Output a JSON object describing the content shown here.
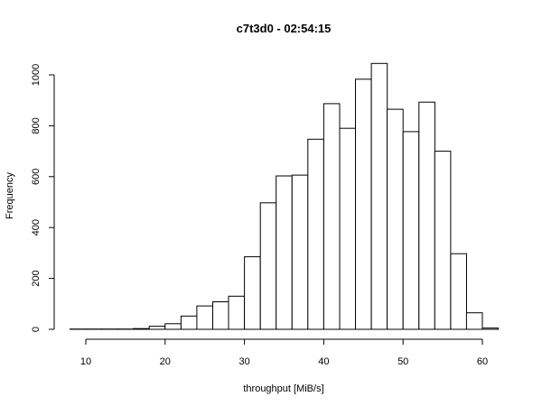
{
  "chart_data": {
    "type": "bar",
    "title": "c7t3d0 - 02:54:15",
    "xlabel": "throughput [MiB/s]",
    "ylabel": "Frequency",
    "xlim": [
      8,
      62
    ],
    "ylim": [
      0,
      1050
    ],
    "xticks": [
      10,
      20,
      30,
      40,
      50,
      60
    ],
    "yticks": [
      0,
      200,
      400,
      600,
      800,
      1000
    ],
    "xtick_labels": [
      "10",
      "20",
      "30",
      "40",
      "50",
      "60"
    ],
    "ytick_labels": [
      "0",
      "200",
      "400",
      "600",
      "800",
      "1000"
    ],
    "bin_width": 2,
    "bin_starts": [
      8,
      10,
      12,
      14,
      16,
      18,
      20,
      22,
      24,
      26,
      28,
      30,
      32,
      34,
      36,
      38,
      40,
      42,
      44,
      46,
      48,
      50,
      52,
      54,
      56,
      58,
      60
    ],
    "values": [
      1,
      1,
      1,
      1,
      3,
      12,
      22,
      52,
      92,
      108,
      130,
      285,
      497,
      603,
      606,
      747,
      887,
      790,
      983,
      1045,
      865,
      777,
      893,
      700,
      297,
      65,
      5
    ],
    "grid": false,
    "legend": "none"
  }
}
